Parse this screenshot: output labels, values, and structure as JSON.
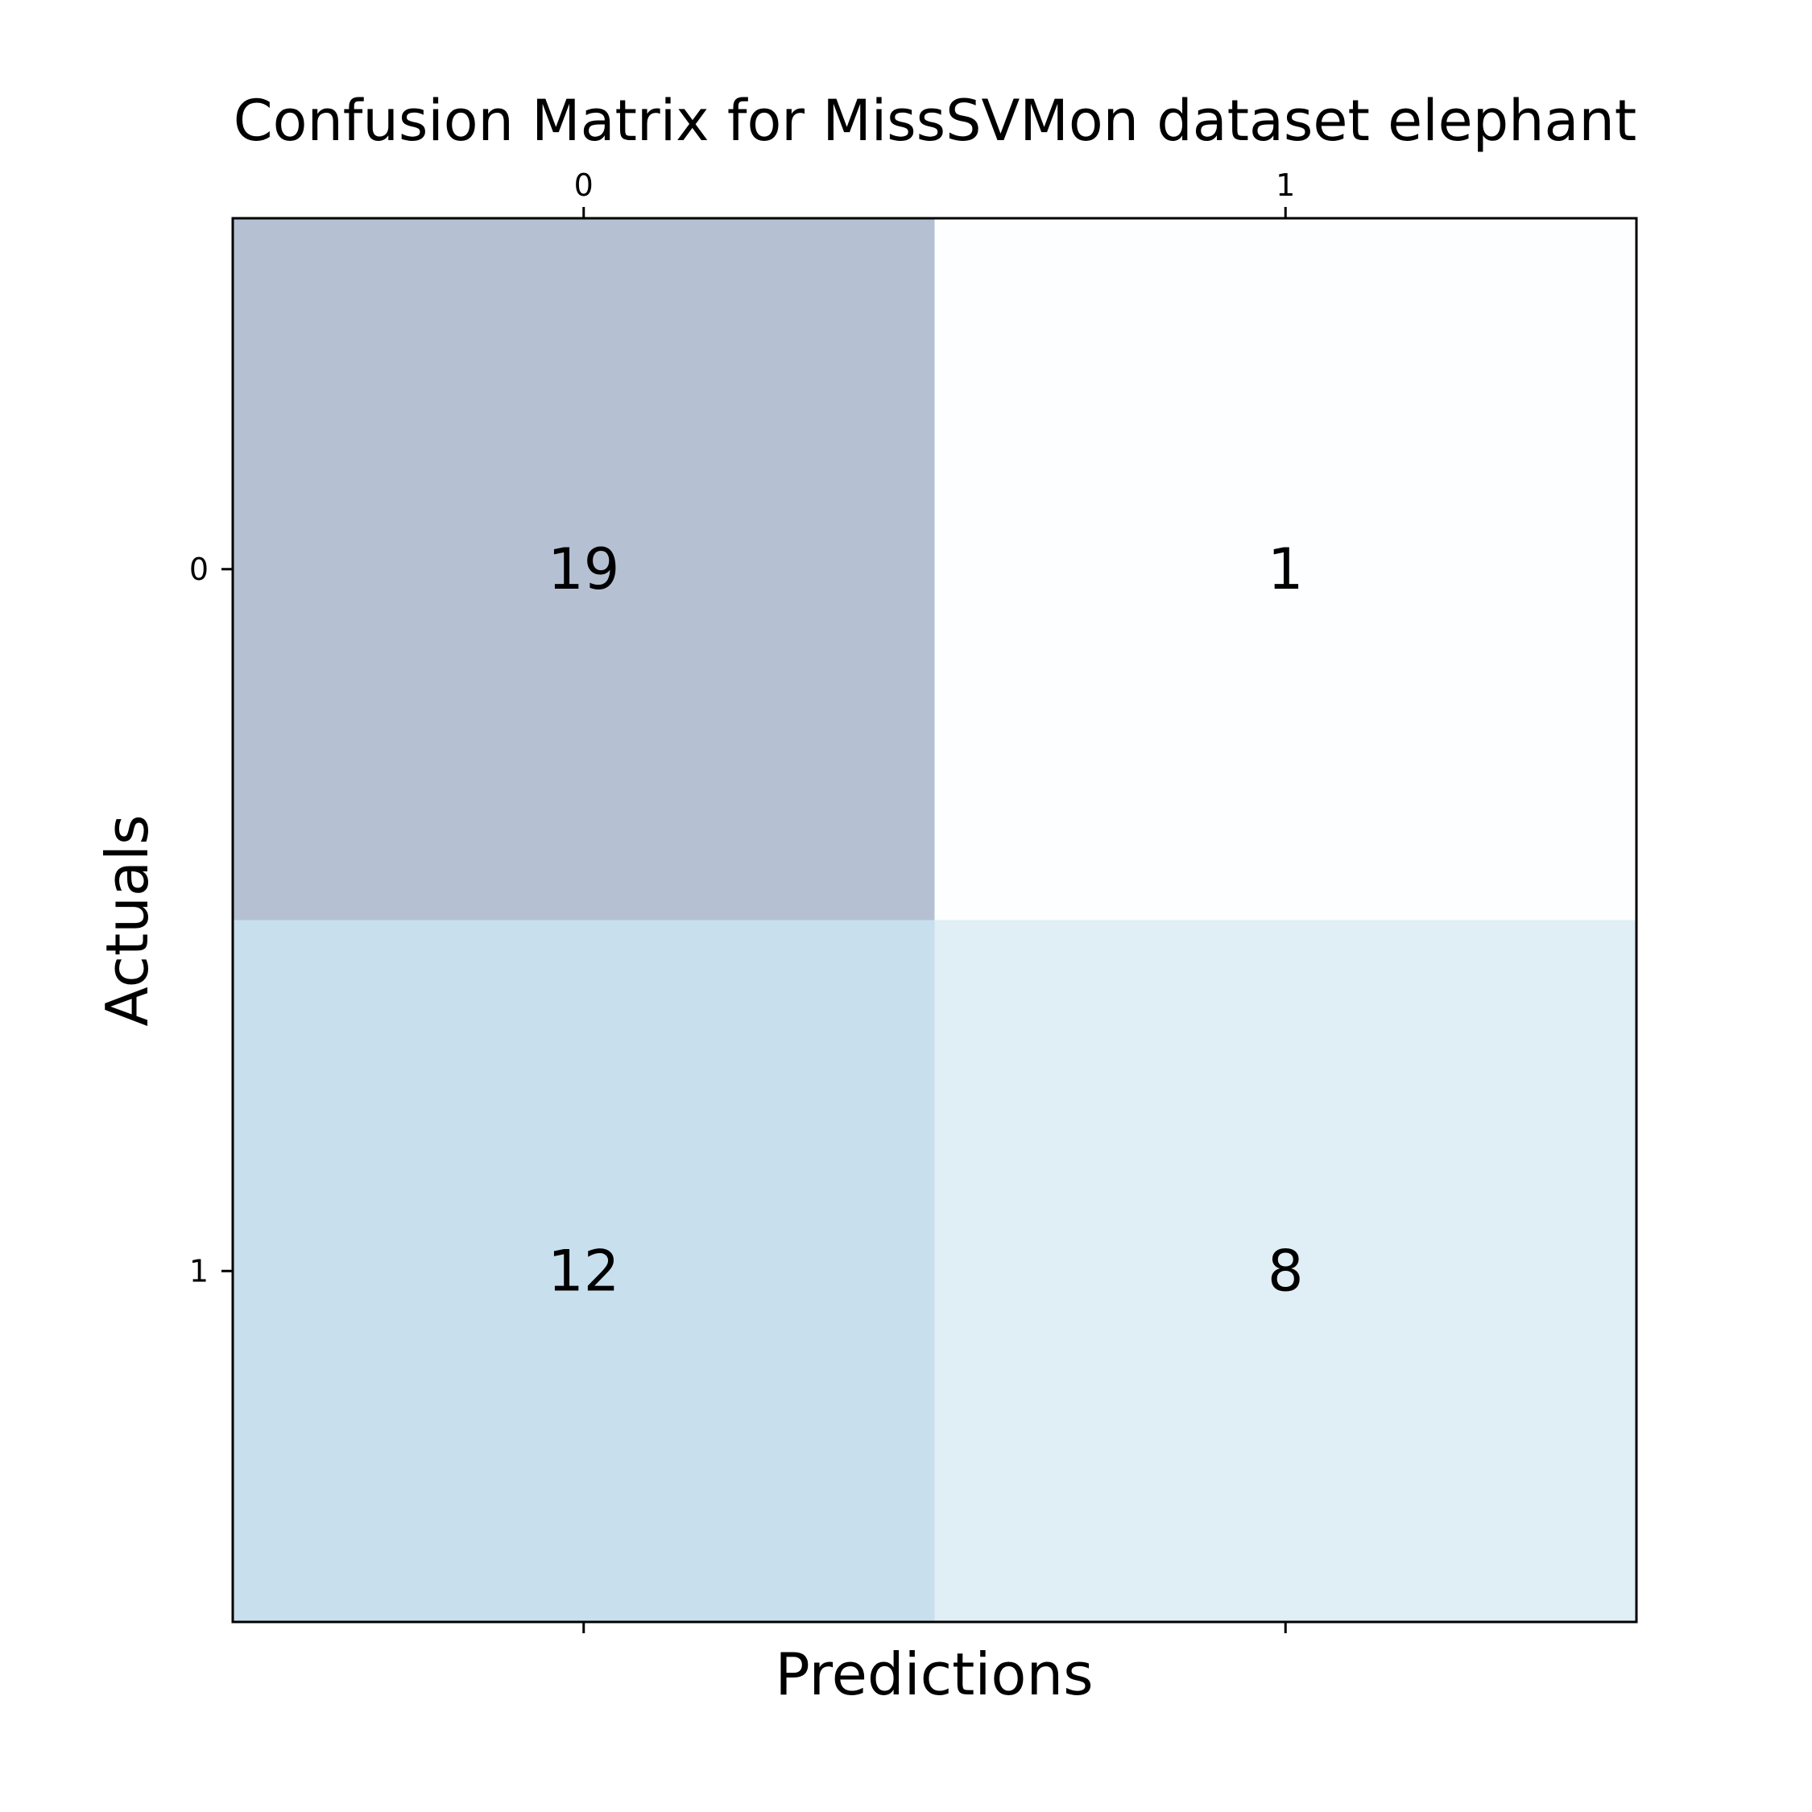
{
  "chart_data": {
    "type": "heatmap",
    "title": "Confusion Matrix for MissSVMon dataset elephant",
    "xlabel": "Predictions",
    "ylabel": "Actuals",
    "x_categories": [
      "0",
      "1"
    ],
    "y_categories": [
      "0",
      "1"
    ],
    "x_ticks_position": "top",
    "matrix": [
      [
        19,
        1
      ],
      [
        12,
        8
      ]
    ],
    "colormap": "Blues",
    "cell_alpha": 0.3,
    "grid": false,
    "legend": "none"
  }
}
